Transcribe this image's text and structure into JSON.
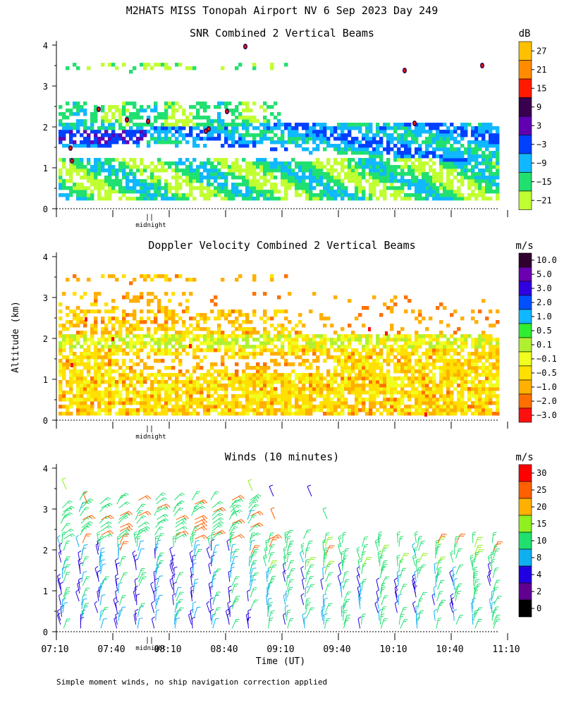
{
  "header": {
    "title": "M2HATS MISS Tonopah Airport NV   6 Sep 2023 Day 249"
  },
  "footer": {
    "note": "Simple moment winds, no ship navigation correction applied"
  },
  "shared": {
    "ylabel": "Altitude (km)",
    "xlabel": "Time (UT)",
    "midnight_label": "midnight",
    "midnight_marker": "||"
  },
  "chart_data": [
    {
      "type": "heatmap",
      "title": "SNR Combined 2 Vertical Beams",
      "units": "dB",
      "ylim": [
        0,
        4
      ],
      "yticks": [
        "0",
        "1",
        "2",
        "3",
        "4"
      ],
      "xrange": [
        "07:10",
        "11:10"
      ],
      "colorbar": {
        "labels": [
          "27",
          "21",
          "15",
          "9",
          "3",
          "−3",
          "−9",
          "−15",
          "−21"
        ],
        "colors": [
          "#ffc000",
          "#ff8c00",
          "#ff1a00",
          "#3a0050",
          "#6000b0",
          "#0040ff",
          "#10b8ff",
          "#20e070",
          "#c0ff30"
        ]
      },
      "features": {
        "high_snr_layer_km": [
          1.5,
          2.0
        ],
        "data_top_km": 3.5,
        "note": "Strong return band near 1.7-1.9 km, descending layer 1.2-1.9 km after 08:40"
      }
    },
    {
      "type": "heatmap",
      "title": "Doppler Velocity Combined 2 Vertical Beams",
      "units": "m/s",
      "ylim": [
        0,
        4
      ],
      "yticks": [
        "0",
        "1",
        "2",
        "3",
        "4"
      ],
      "xrange": [
        "07:10",
        "11:10"
      ],
      "colorbar": {
        "labels": [
          "10.0",
          "5.0",
          "3.0",
          "2.0",
          "1.0",
          "0.5",
          "0.1",
          "−0.1",
          "−0.5",
          "−1.0",
          "−2.0",
          "−3.0"
        ],
        "colors": [
          "#300030",
          "#6a00b0",
          "#3000e0",
          "#0050ff",
          "#10b8ff",
          "#30ee30",
          "#b0f030",
          "#f0ff20",
          "#ffe000",
          "#ffb000",
          "#ff7000",
          "#ff1010"
        ]
      },
      "features": {
        "dominant_range_ms": [
          -1.0,
          0.1
        ],
        "note": "Mostly weak downward motion (yellow/orange), green near 2 km"
      }
    },
    {
      "type": "wind_barbs",
      "title": "Winds (10 minutes)",
      "units": "m/s",
      "ylim": [
        0,
        4
      ],
      "yticks": [
        "0",
        "1",
        "2",
        "3",
        "4"
      ],
      "xticks": [
        "07:10",
        "07:40",
        "08:10",
        "08:40",
        "09:10",
        "09:40",
        "10:10",
        "10:40",
        "11:10"
      ],
      "colorbar": {
        "labels": [
          "30",
          "25",
          "20",
          "15",
          "10",
          "8",
          "4",
          "2",
          "0"
        ],
        "colors": [
          "#ff0000",
          "#ff6000",
          "#ffb000",
          "#90f020",
          "#20e070",
          "#10b0f0",
          "#2000e0",
          "#600090",
          "#000000"
        ]
      },
      "features": {
        "profile_interval_min": 10,
        "typical_speed_ms": [
          4,
          15
        ],
        "note": "Mostly southerly/westerly winds, stronger (15-30 m/s) above 2 km"
      }
    }
  ]
}
